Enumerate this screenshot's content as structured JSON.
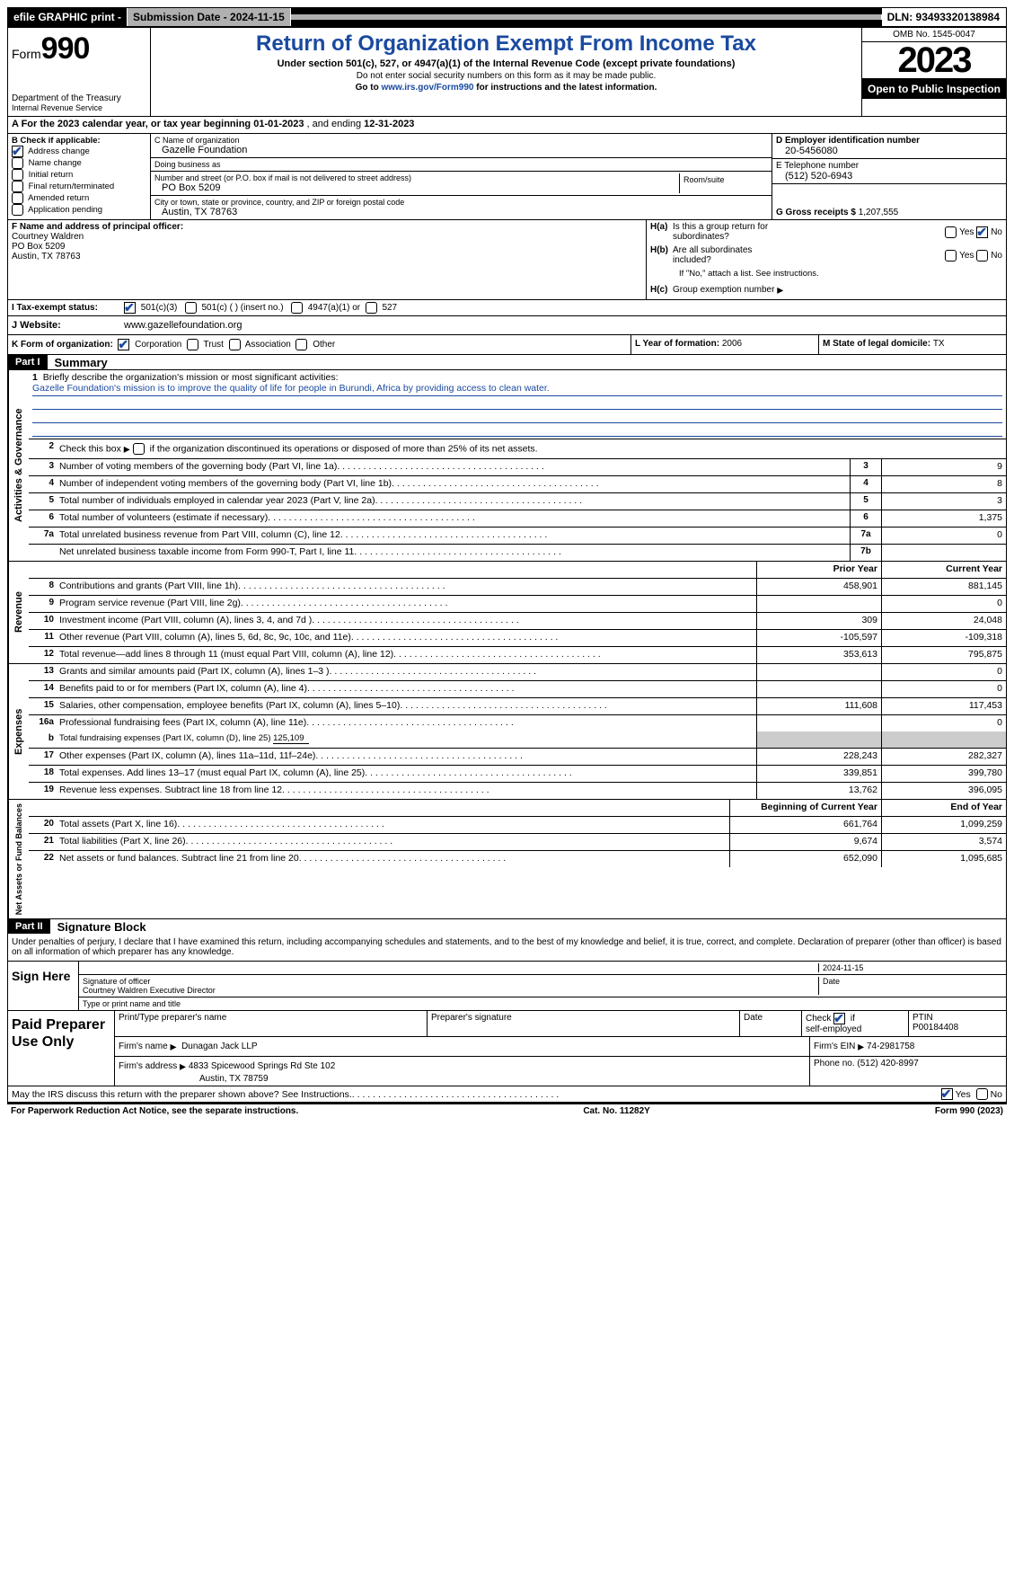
{
  "colors": {
    "link_blue": "#1a4aa0",
    "check_blue": "#1a4aa0",
    "header_black": "#000000",
    "shade_grey": "#cccccc"
  },
  "topbar": {
    "efile": "efile GRAPHIC print -",
    "submission": "Submission Date - 2024-11-15",
    "dln": "DLN: 93493320138984"
  },
  "header": {
    "form_prefix": "Form",
    "form_number": "990",
    "dept": "Department of the Treasury",
    "irs": "Internal Revenue Service",
    "title": "Return of Organization Exempt From Income Tax",
    "subtitle": "Under section 501(c), 527, or 4947(a)(1) of the Internal Revenue Code (except private foundations)",
    "note1": "Do not enter social security numbers on this form as it may be made public.",
    "note2_pre": "Go to ",
    "note2_link": "www.irs.gov/Form990",
    "note2_post": " for instructions and the latest information.",
    "omb": "OMB No. 1545-0047",
    "year": "2023",
    "inspection": "Open to Public Inspection"
  },
  "row_a": {
    "text_pre": "A For the 2023 calendar year, or tax year beginning ",
    "begin": "01-01-2023",
    "mid": "  , and ending ",
    "end": "12-31-2023"
  },
  "section_b": {
    "label": "B Check if applicable:",
    "items": [
      {
        "label": "Address change",
        "checked": true
      },
      {
        "label": "Name change",
        "checked": false
      },
      {
        "label": "Initial return",
        "checked": false
      },
      {
        "label": "Final return/terminated",
        "checked": false
      },
      {
        "label": "Amended return",
        "checked": false
      },
      {
        "label": "Application pending",
        "checked": false
      }
    ]
  },
  "section_c": {
    "name_label": "C Name of organization",
    "name": "Gazelle Foundation",
    "dba_label": "Doing business as",
    "dba": "",
    "street_label": "Number and street (or P.O. box if mail is not delivered to street address)",
    "street": "PO Box 5209",
    "room_label": "Room/suite",
    "city_label": "City or town, state or province, country, and ZIP or foreign postal code",
    "city": "Austin, TX  78763"
  },
  "section_d": {
    "ein_label": "D Employer identification number",
    "ein": "20-5456080",
    "phone_label": "E Telephone number",
    "phone": "(512) 520-6943",
    "gross_label": "G Gross receipts $",
    "gross": "1,207,555"
  },
  "section_f": {
    "label": "F  Name and address of principal officer:",
    "name": "Courtney Waldren",
    "addr1": "PO Box 5209",
    "addr2": "Austin, TX  78763"
  },
  "section_h": {
    "ha_label": "H(a)  Is this a group return for subordinates?",
    "ha_yes": false,
    "ha_no": true,
    "hb_label": "H(b)  Are all subordinates included?",
    "hb_yes": false,
    "hb_no": false,
    "hb_note": "If \"No,\" attach a list. See instructions.",
    "hc_label": "H(c)  Group exemption number ",
    "hc_val": ""
  },
  "tax_status": {
    "label": "I   Tax-exempt status:",
    "c501c3": true,
    "opt2": "501(c) (   ) (insert no.)",
    "opt3": "4947(a)(1) or",
    "opt4": "527"
  },
  "website": {
    "label": "J   Website: ",
    "url": "www.gazellefoundation.org"
  },
  "k_row": {
    "label": "K Form of organization:",
    "corp": true,
    "opts": [
      "Corporation",
      "Trust",
      "Association",
      "Other"
    ],
    "l_label": "L Year of formation: ",
    "l_val": "2006",
    "m_label": "M State of legal domicile: ",
    "m_val": "TX"
  },
  "part1": {
    "header": "Part I",
    "title": "Summary"
  },
  "governance": {
    "label": "Activities & Governance",
    "line1_label": "Briefly describe the organization's mission or most significant activities:",
    "line1_text": "Gazelle Foundation's mission is to improve the quality of life for people in Burundi, Africa by providing access to clean water.",
    "line2": "Check this box      if the organization discontinued its operations or disposed of more than 25% of its net assets.",
    "rows": [
      {
        "n": "3",
        "t": "Number of voting members of the governing body (Part VI, line 1a)",
        "box": "3",
        "v": "9"
      },
      {
        "n": "4",
        "t": "Number of independent voting members of the governing body (Part VI, line 1b)",
        "box": "4",
        "v": "8"
      },
      {
        "n": "5",
        "t": "Total number of individuals employed in calendar year 2023 (Part V, line 2a)",
        "box": "5",
        "v": "3"
      },
      {
        "n": "6",
        "t": "Total number of volunteers (estimate if necessary)",
        "box": "6",
        "v": "1,375"
      },
      {
        "n": "7a",
        "t": "Total unrelated business revenue from Part VIII, column (C), line 12",
        "box": "7a",
        "v": "0"
      },
      {
        "n": "",
        "t": "Net unrelated business taxable income from Form 990-T, Part I, line 11",
        "box": "7b",
        "v": ""
      }
    ]
  },
  "two_col_header": {
    "prior": "Prior Year",
    "current": "Current Year"
  },
  "revenue": {
    "label": "Revenue",
    "rows": [
      {
        "n": "8",
        "t": "Contributions and grants (Part VIII, line 1h)",
        "p": "458,901",
        "c": "881,145"
      },
      {
        "n": "9",
        "t": "Program service revenue (Part VIII, line 2g)",
        "p": "",
        "c": "0"
      },
      {
        "n": "10",
        "t": "Investment income (Part VIII, column (A), lines 3, 4, and 7d )",
        "p": "309",
        "c": "24,048"
      },
      {
        "n": "11",
        "t": "Other revenue (Part VIII, column (A), lines 5, 6d, 8c, 9c, 10c, and 11e)",
        "p": "-105,597",
        "c": "-109,318"
      },
      {
        "n": "12",
        "t": "Total revenue—add lines 8 through 11 (must equal Part VIII, column (A), line 12)",
        "p": "353,613",
        "c": "795,875"
      }
    ]
  },
  "expenses": {
    "label": "Expenses",
    "rows": [
      {
        "n": "13",
        "t": "Grants and similar amounts paid (Part IX, column (A), lines 1–3 )",
        "p": "",
        "c": "0"
      },
      {
        "n": "14",
        "t": "Benefits paid to or for members (Part IX, column (A), line 4)",
        "p": "",
        "c": "0"
      },
      {
        "n": "15",
        "t": "Salaries, other compensation, employee benefits (Part IX, column (A), lines 5–10)",
        "p": "111,608",
        "c": "117,453"
      },
      {
        "n": "16a",
        "t": "Professional fundraising fees (Part IX, column (A), line 11e)",
        "p": "",
        "c": "0"
      }
    ],
    "line_b": {
      "n": "b",
      "t": "Total fundraising expenses (Part IX, column (D), line 25) ",
      "amt": "125,109"
    },
    "rows2": [
      {
        "n": "17",
        "t": "Other expenses (Part IX, column (A), lines 11a–11d, 11f–24e)",
        "p": "228,243",
        "c": "282,327"
      },
      {
        "n": "18",
        "t": "Total expenses. Add lines 13–17 (must equal Part IX, column (A), line 25)",
        "p": "339,851",
        "c": "399,780"
      },
      {
        "n": "19",
        "t": "Revenue less expenses. Subtract line 18 from line 12",
        "p": "13,762",
        "c": "396,095"
      }
    ]
  },
  "netassets_header": {
    "begin": "Beginning of Current Year",
    "end": "End of Year"
  },
  "netassets": {
    "label": "Net Assets or Fund Balances",
    "rows": [
      {
        "n": "20",
        "t": "Total assets (Part X, line 16)",
        "p": "661,764",
        "c": "1,099,259"
      },
      {
        "n": "21",
        "t": "Total liabilities (Part X, line 26)",
        "p": "9,674",
        "c": "3,574"
      },
      {
        "n": "22",
        "t": "Net assets or fund balances. Subtract line 21 from line 20",
        "p": "652,090",
        "c": "1,095,685"
      }
    ]
  },
  "part2": {
    "header": "Part II",
    "title": "Signature Block",
    "intro": "Under penalties of perjury, I declare that I have examined this return, including accompanying schedules and statements, and to the best of my knowledge and belief, it is true, correct, and complete. Declaration of preparer (other than officer) is based on all information of which preparer has any knowledge."
  },
  "sign": {
    "label": "Sign Here",
    "date": "2024-11-15",
    "sig_label": "Signature of officer",
    "name_title": "Courtney Waldren  Executive Director",
    "type_label": "Type or print name and title",
    "date_label": "Date"
  },
  "preparer": {
    "label": "Paid Preparer Use Only",
    "print_label": "Print/Type preparer's name",
    "print_val": "",
    "sig_label": "Preparer's signature",
    "date_label": "Date",
    "self_label": "Check         if self-employed",
    "self_checked": true,
    "ptin_label": "PTIN",
    "ptin": "P00184408",
    "firm_name_label": "Firm's name    ",
    "firm_name": "Dunagan Jack LLP",
    "firm_ein_label": "Firm's EIN ",
    "firm_ein": "74-2981758",
    "firm_addr_label": "Firm's address ",
    "firm_addr1": "4833 Spicewood Springs Rd Ste 102",
    "firm_addr2": "Austin, TX  78759",
    "phone_label": "Phone no. ",
    "phone": "(512) 420-8997"
  },
  "discuss": {
    "text": "May the IRS discuss this return with the preparer shown above? See Instructions.",
    "yes": true,
    "no": false
  },
  "footer": {
    "left": "For Paperwork Reduction Act Notice, see the separate instructions.",
    "mid": "Cat. No. 11282Y",
    "right_pre": "Form ",
    "right_form": "990",
    "right_post": " (2023)"
  }
}
